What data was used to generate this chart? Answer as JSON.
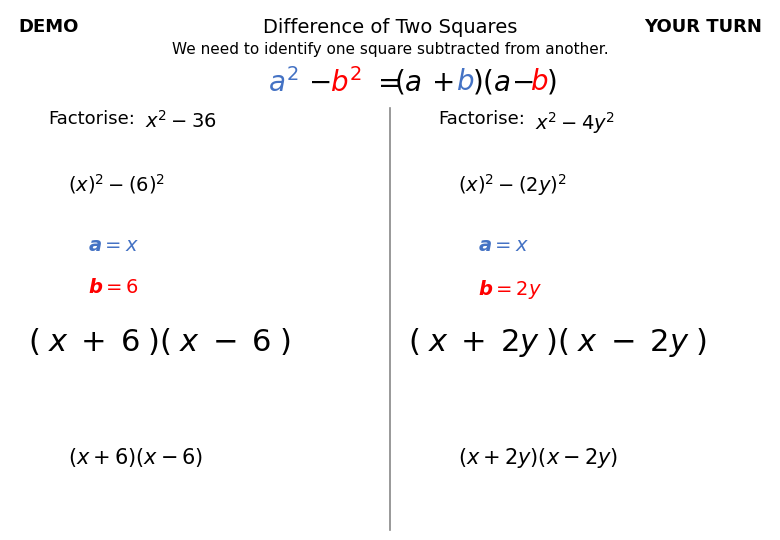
{
  "title": "Difference of Two Squares",
  "demo_label": "DEMO",
  "yourturn_label": "YOUR TURN",
  "subtitle": "We need to identify one square subtracted from another.",
  "color_blue": "#4472C4",
  "color_red": "#FF0000",
  "color_black": "#000000",
  "color_gray": "#888888",
  "bg_color": "#FFFFFF"
}
